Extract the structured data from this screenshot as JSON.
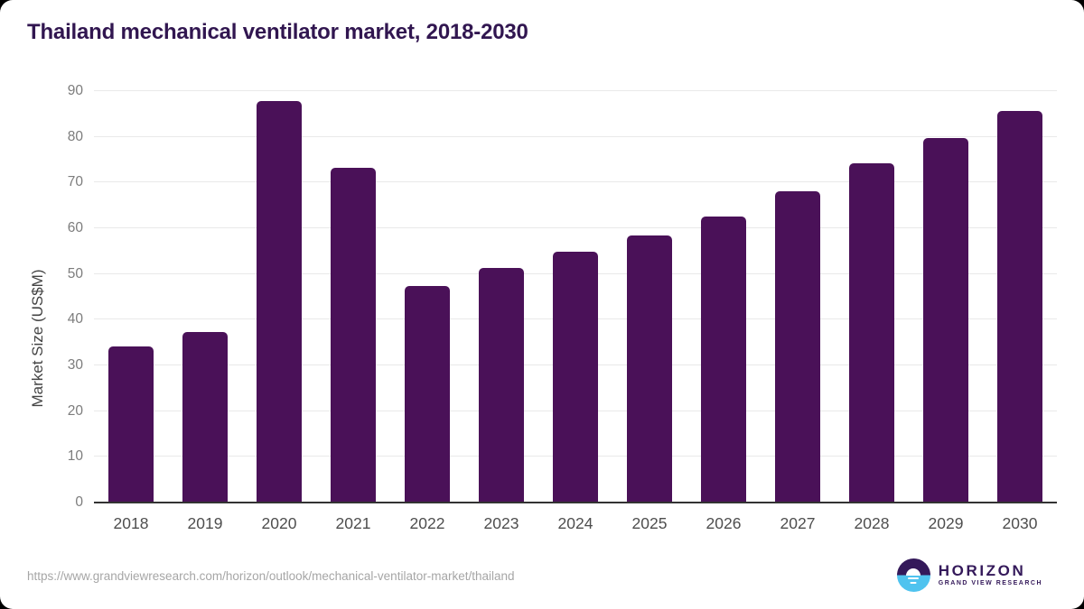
{
  "chart_data": {
    "type": "bar",
    "title": "Thailand mechanical ventilator market, 2018-2030",
    "categories": [
      "2018",
      "2019",
      "2020",
      "2021",
      "2022",
      "2023",
      "2024",
      "2025",
      "2026",
      "2027",
      "2028",
      "2029",
      "2030"
    ],
    "values": [
      34.2,
      37.4,
      87.9,
      73.3,
      47.3,
      51.3,
      54.9,
      58.4,
      62.6,
      68.1,
      74.3,
      79.7,
      85.6
    ],
    "xlabel": "",
    "ylabel": "Market Size (US$M)",
    "ylim": [
      0,
      90
    ],
    "yticks": [
      0,
      10,
      20,
      30,
      40,
      50,
      60,
      70,
      80,
      90
    ],
    "grid": true,
    "legend": false
  },
  "footer": {
    "source_url": "https://www.grandviewresearch.com/horizon/outlook/mechanical-ventilator-market/thailand",
    "logo_brand": "HORIZON",
    "logo_subtitle": "GRAND VIEW RESEARCH"
  },
  "colors": {
    "title": "#311650",
    "bar": "#4a1158",
    "axis": "#333333",
    "grid": "#e9e9e9",
    "ytick": "#7c7c7c",
    "xtick": "#4e4e4e",
    "ylabelColor": "#444444",
    "url": "#a6a6a6",
    "logoPurple": "#34195a",
    "logoBlue": "#4fc3ef"
  }
}
